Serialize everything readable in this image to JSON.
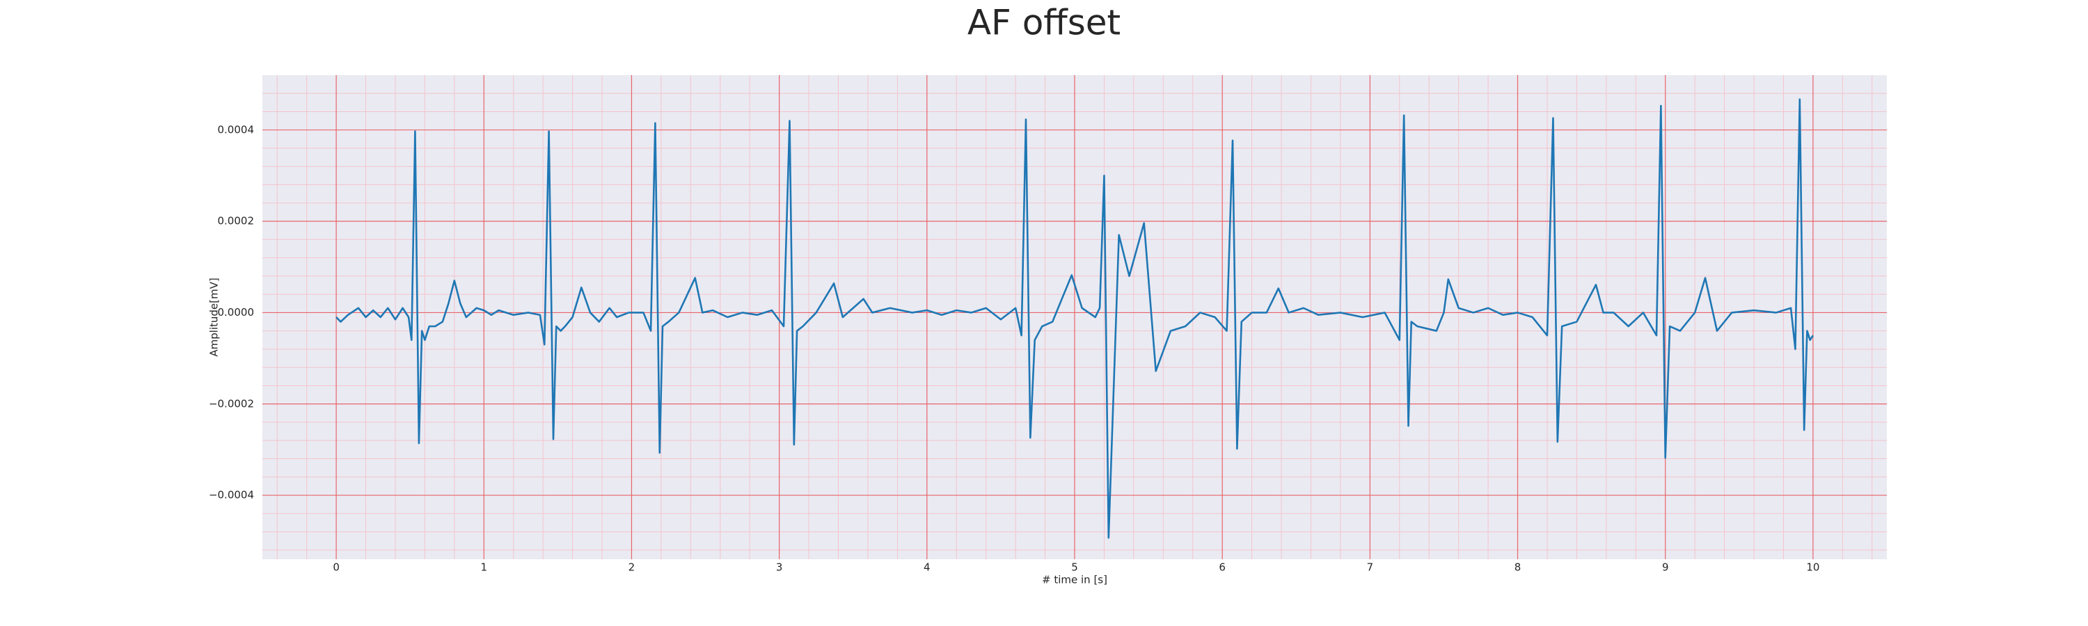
{
  "chart_data": {
    "type": "line",
    "title": "AF offset",
    "x_label": "# time in [s]",
    "y_label": "Amplitude[mV]",
    "x": [
      0,
      0.03,
      0.08,
      0.15,
      0.2,
      0.25,
      0.3,
      0.35,
      0.4,
      0.45,
      0.49,
      0.51,
      0.534,
      0.56,
      0.58,
      0.6,
      0.63,
      0.67,
      0.72,
      0.76,
      0.8,
      0.84,
      0.88,
      0.95,
      1.0,
      1.05,
      1.1,
      1.2,
      1.3,
      1.38,
      1.41,
      1.44,
      1.47,
      1.49,
      1.52,
      1.55,
      1.6,
      1.66,
      1.72,
      1.78,
      1.85,
      1.9,
      1.98,
      2.08,
      2.13,
      2.16,
      2.19,
      2.21,
      2.25,
      2.32,
      2.43,
      2.48,
      2.55,
      2.65,
      2.75,
      2.85,
      2.95,
      3.03,
      3.07,
      3.1,
      3.12,
      3.16,
      3.25,
      3.37,
      3.43,
      3.57,
      3.63,
      3.75,
      3.9,
      4.0,
      4.1,
      4.2,
      4.3,
      4.4,
      4.5,
      4.6,
      4.64,
      4.67,
      4.7,
      4.73,
      4.78,
      4.85,
      4.98,
      5.05,
      5.14,
      5.17,
      5.2,
      5.23,
      5.3,
      5.37,
      5.47,
      5.55,
      5.65,
      5.75,
      5.85,
      5.95,
      6.03,
      6.07,
      6.1,
      6.13,
      6.2,
      6.3,
      6.38,
      6.45,
      6.55,
      6.65,
      6.8,
      6.95,
      7.1,
      7.2,
      7.23,
      7.26,
      7.28,
      7.32,
      7.45,
      7.5,
      7.53,
      7.6,
      7.7,
      7.8,
      7.9,
      8.0,
      8.1,
      8.2,
      8.24,
      8.27,
      8.3,
      8.4,
      8.53,
      8.58,
      8.65,
      8.75,
      8.85,
      8.94,
      8.97,
      9.0,
      9.03,
      9.1,
      9.2,
      9.27,
      9.35,
      9.45,
      9.6,
      9.75,
      9.85,
      9.88,
      9.91,
      9.94,
      9.96,
      9.98,
      10.0
    ],
    "values": [
      -1e-05,
      -2e-05,
      -5e-06,
      1e-05,
      -1e-05,
      5e-06,
      -1e-05,
      1e-05,
      -1.5e-05,
      1e-05,
      -1e-05,
      -6e-05,
      0.000397,
      -0.000286,
      -4e-05,
      -6e-05,
      -3e-05,
      -3e-05,
      -2e-05,
      2e-05,
      7e-05,
      2e-05,
      -1e-05,
      1e-05,
      5e-06,
      -5e-06,
      5e-06,
      -5e-06,
      0,
      -5e-06,
      -7e-05,
      0.000397,
      -0.000277,
      -3e-05,
      -4e-05,
      -3e-05,
      -1e-05,
      5.5e-05,
      0,
      -2e-05,
      1e-05,
      -1e-05,
      0,
      0,
      -4e-05,
      0.000415,
      -0.000307,
      -3e-05,
      -2e-05,
      0,
      7.6e-05,
      0,
      5e-06,
      -1e-05,
      0,
      -5e-06,
      5e-06,
      -3e-05,
      0.00042,
      -0.000289,
      -4e-05,
      -3e-05,
      0,
      6.4e-05,
      -1e-05,
      3e-05,
      0,
      1e-05,
      0,
      5e-06,
      -5e-06,
      5e-06,
      0,
      1e-05,
      -1.5e-05,
      1e-05,
      -5e-05,
      0.000423,
      -0.000274,
      -6e-05,
      -3e-05,
      -2e-05,
      8.2e-05,
      1e-05,
      -1e-05,
      1e-05,
      0.0003,
      -0.000493,
      0.00017,
      8e-05,
      0.000196,
      -0.000128,
      -4e-05,
      -3e-05,
      0,
      -1e-05,
      -4e-05,
      0.000377,
      -0.000298,
      -2e-05,
      0,
      0,
      5.3e-05,
      0,
      1e-05,
      -5e-06,
      0,
      -1e-05,
      0,
      -6e-05,
      0.000432,
      -0.000248,
      -2e-05,
      -3e-05,
      -4e-05,
      0,
      7.3e-05,
      1e-05,
      0,
      1e-05,
      -5e-06,
      0,
      -1e-05,
      -5e-05,
      0.000426,
      -0.000283,
      -3e-05,
      -2e-05,
      6.1e-05,
      0,
      0,
      -3e-05,
      0,
      -5e-05,
      0.000453,
      -0.000318,
      -3e-05,
      -4e-05,
      0,
      7.6e-05,
      -4e-05,
      0,
      5e-06,
      0,
      1e-05,
      -8e-05,
      0.000467,
      -0.000257,
      -4e-05,
      -6e-05,
      -5e-05
    ],
    "color": "#1f77b4",
    "xlim": [
      -0.5,
      10.5
    ],
    "xticks": [
      0,
      1,
      2,
      3,
      4,
      5,
      6,
      7,
      8,
      9,
      10
    ],
    "ylim": [
      -0.00054,
      0.00052
    ],
    "yticks": [
      {
        "value": -0.0004,
        "label": "−0.0004"
      },
      {
        "value": -0.0002,
        "label": "−0.0002"
      },
      {
        "value": 0,
        "label": "0.0000"
      },
      0.0002,
      0.0004
    ],
    "grid": true,
    "minor_grid": true
  }
}
